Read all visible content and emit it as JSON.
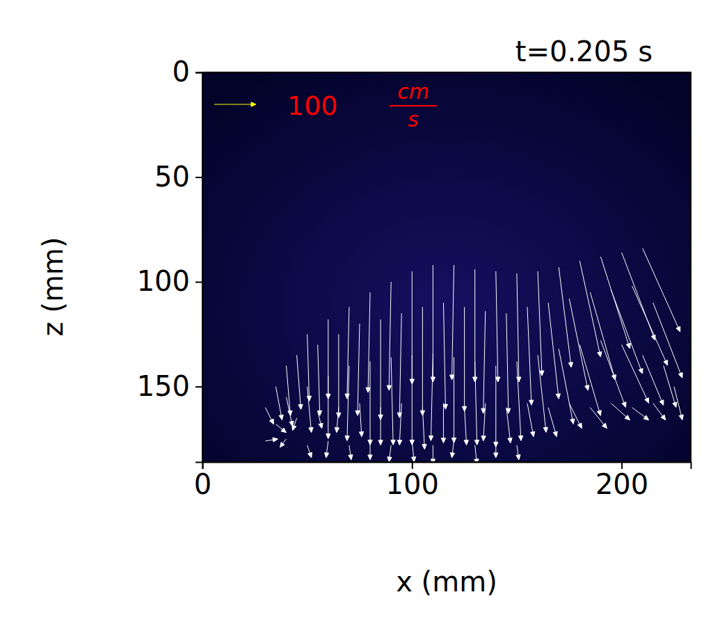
{
  "chart_data": {
    "type": "quiver",
    "title": "t=0.205 s",
    "x_label": "x (mm)",
    "y_label": "z (mm)",
    "xlim": [
      0,
      233
    ],
    "ylim": [
      186,
      0
    ],
    "xticks": [
      0,
      100,
      200
    ],
    "yticks": [
      0,
      50,
      100,
      150
    ],
    "key": {
      "value": 100,
      "unit_numerator": "cm",
      "unit_denominator": "s",
      "color": "#ffff00",
      "label_color": "#ff0000"
    },
    "color": "#ffffff",
    "x": [
      40,
      50,
      60,
      70,
      80,
      90,
      100,
      110,
      120,
      130,
      140,
      150,
      160,
      170,
      180,
      190,
      200,
      210,
      35,
      45,
      55,
      65,
      75,
      85,
      95,
      105,
      115,
      125,
      135,
      145,
      155,
      165,
      175,
      185,
      195,
      205,
      215,
      30,
      40,
      50,
      60,
      70,
      80,
      90,
      100,
      110,
      120,
      130,
      140,
      150,
      160,
      170,
      180,
      190,
      200,
      210,
      220,
      35,
      45,
      55,
      65,
      75,
      85,
      95,
      105,
      115,
      125,
      135,
      145,
      155,
      165,
      175,
      185,
      195,
      205,
      215,
      225,
      30,
      40,
      50,
      60,
      70,
      80,
      90,
      100,
      110,
      120,
      130,
      140,
      150
    ],
    "y": [
      140,
      125,
      118,
      112,
      105,
      100,
      95,
      92,
      92,
      94,
      95,
      96,
      95,
      93,
      90,
      88,
      86,
      84,
      150,
      135,
      130,
      125,
      120,
      118,
      115,
      112,
      110,
      112,
      114,
      115,
      112,
      110,
      108,
      105,
      104,
      102,
      110,
      160,
      155,
      150,
      145,
      140,
      138,
      136,
      135,
      134,
      136,
      138,
      140,
      138,
      135,
      132,
      130,
      128,
      130,
      135,
      140,
      168,
      165,
      162,
      160,
      158,
      160,
      158,
      160,
      158,
      160,
      158,
      160,
      158,
      160,
      158,
      160,
      158,
      160,
      158,
      150,
      176,
      175,
      178,
      176,
      178,
      176,
      178,
      176,
      178,
      176,
      178,
      176,
      178
    ],
    "u": [
      10,
      5,
      0,
      -5,
      -5,
      -5,
      0,
      0,
      -5,
      0,
      5,
      5,
      10,
      30,
      50,
      70,
      80,
      90,
      15,
      10,
      5,
      0,
      -5,
      0,
      -5,
      0,
      5,
      0,
      -5,
      5,
      10,
      25,
      45,
      60,
      75,
      85,
      70,
      20,
      15,
      10,
      0,
      -5,
      0,
      5,
      0,
      -5,
      0,
      5,
      0,
      10,
      20,
      35,
      50,
      60,
      65,
      50,
      30,
      25,
      -10,
      10,
      -5,
      5,
      0,
      -5,
      5,
      0,
      5,
      -5,
      10,
      15,
      20,
      30,
      40,
      45,
      40,
      30,
      20,
      30,
      -15,
      10,
      -5,
      5,
      0,
      -5,
      5,
      0,
      -5,
      5,
      0,
      5
    ],
    "v": [
      120,
      160,
      190,
      220,
      240,
      260,
      270,
      280,
      275,
      270,
      265,
      260,
      250,
      240,
      230,
      220,
      210,
      200,
      80,
      130,
      170,
      200,
      220,
      240,
      250,
      260,
      255,
      250,
      245,
      240,
      235,
      230,
      220,
      210,
      200,
      190,
      180,
      40,
      70,
      110,
      150,
      180,
      200,
      210,
      215,
      210,
      205,
      200,
      195,
      190,
      185,
      180,
      170,
      160,
      140,
      120,
      100,
      20,
      30,
      40,
      60,
      80,
      90,
      100,
      100,
      95,
      90,
      90,
      85,
      80,
      70,
      60,
      50,
      40,
      30,
      40,
      80,
      -5,
      20,
      30,
      40,
      35,
      45,
      40,
      50,
      45,
      40,
      45,
      40,
      35
    ]
  }
}
